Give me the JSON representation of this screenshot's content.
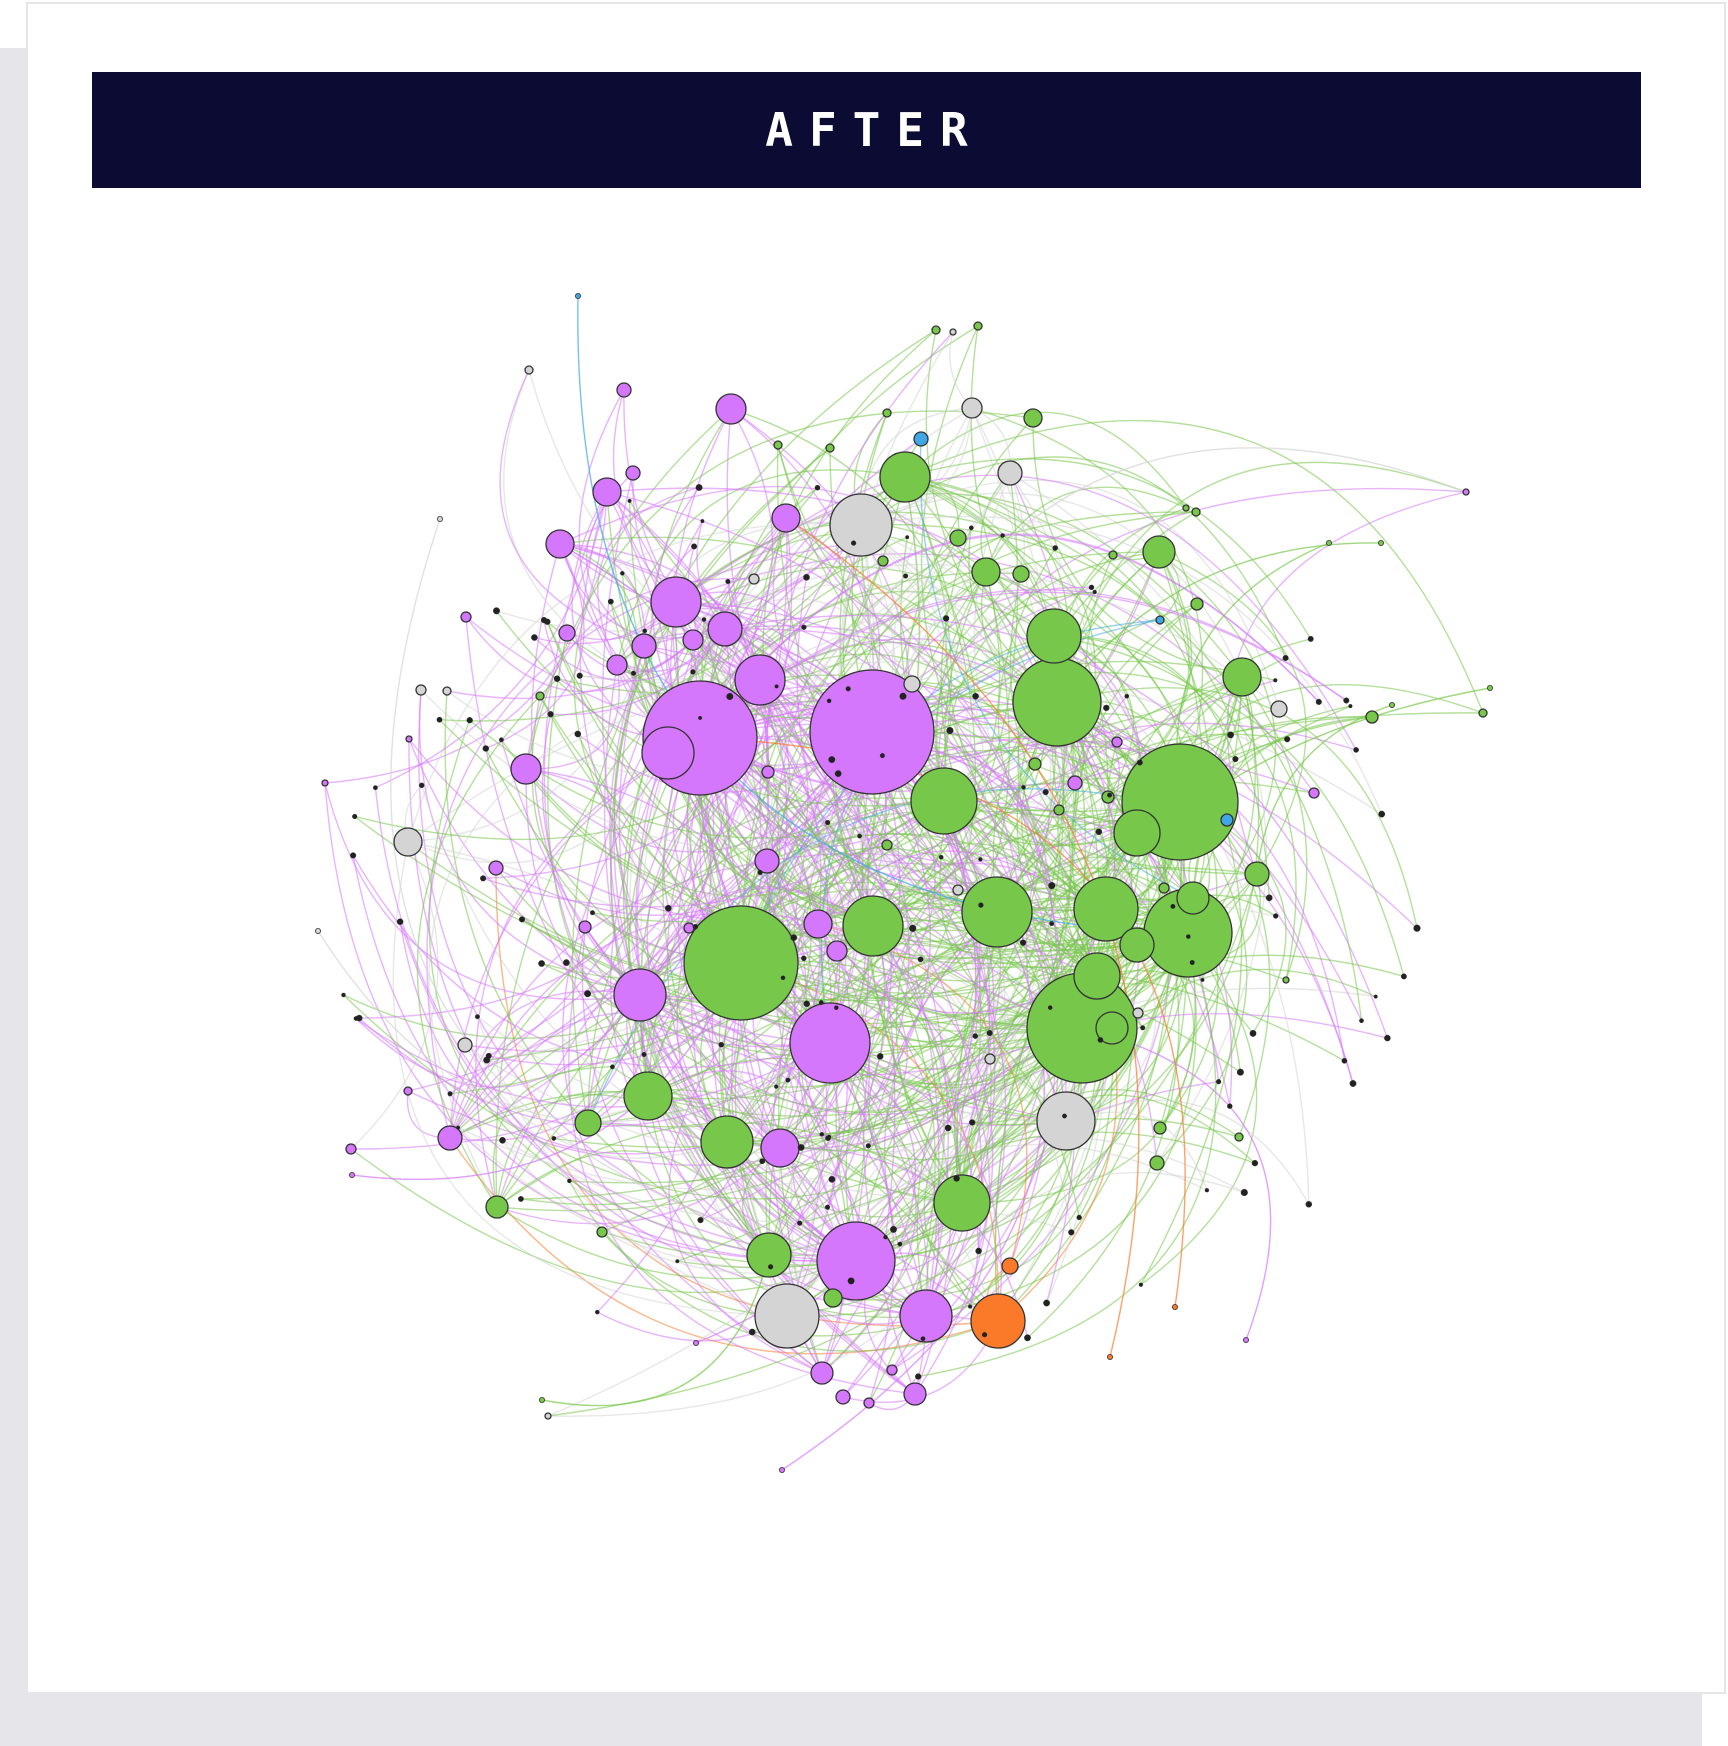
{
  "banner": {
    "title": "AFTER"
  },
  "colors": {
    "banner_bg": "#0b0b33",
    "purple": "#d577fc",
    "green": "#77c74a",
    "gray": "#d4d4d4",
    "orange": "#fa7a2a",
    "blue": "#3fa7e5",
    "node_stroke": "#333333"
  },
  "network": {
    "communities": [
      "purple",
      "green",
      "gray",
      "orange",
      "blue"
    ],
    "visible_node_counts": {
      "purple": 44,
      "green": 53,
      "gray": 18,
      "orange": 2,
      "blue": 3
    }
  }
}
